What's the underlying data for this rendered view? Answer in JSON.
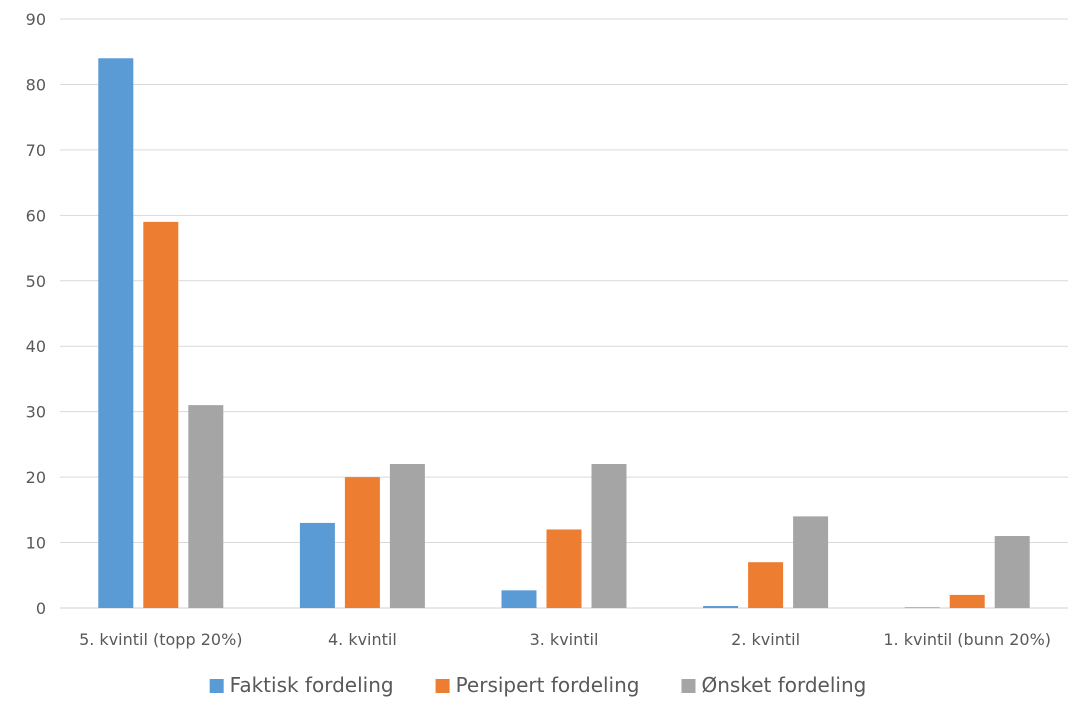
{
  "chart_data": {
    "type": "bar",
    "categories": [
      "5. kvintil (topp 20%)",
      "4. kvintil",
      "3. kvintil",
      "2. kvintil",
      "1. kvintil (bunn 20%)"
    ],
    "series": [
      {
        "name": "Faktisk fordeling",
        "color": "#5b9bd5",
        "values": [
          84,
          13,
          2.7,
          0.3,
          0.1
        ]
      },
      {
        "name": "Persipert fordeling",
        "color": "#ed7d31",
        "values": [
          59,
          20,
          12,
          7,
          2
        ]
      },
      {
        "name": "Ønsket fordeling",
        "color": "#a5a5a5",
        "values": [
          31,
          22,
          22,
          14,
          11
        ]
      }
    ],
    "ylim": [
      0,
      90
    ],
    "yticks": [
      0,
      10,
      20,
      30,
      40,
      50,
      60,
      70,
      80,
      90
    ],
    "grid": true,
    "legend_position": "bottom"
  }
}
